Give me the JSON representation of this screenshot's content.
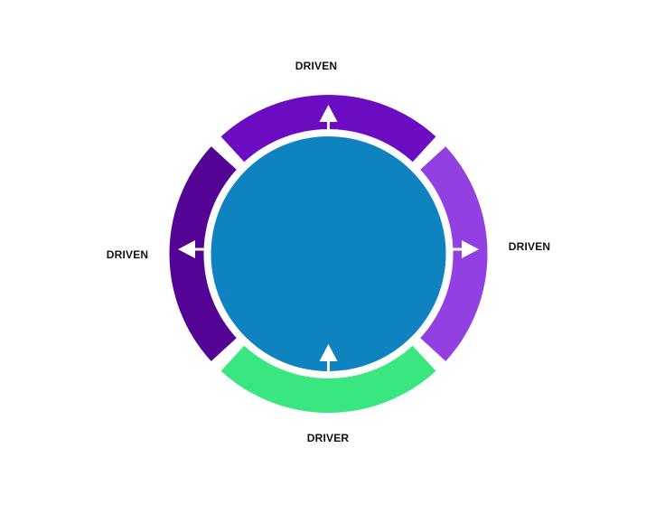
{
  "labels": {
    "top": "DRIVEN",
    "right": "DRIVEN",
    "left": "DRIVEN",
    "bottom": "DRIVER"
  },
  "colors": {
    "top": "#6b0cc2",
    "right": "#9340e2",
    "left": "#530494",
    "bottom": "#3ae67f",
    "center": "#0f83c0",
    "arrow": "#ffffff"
  }
}
